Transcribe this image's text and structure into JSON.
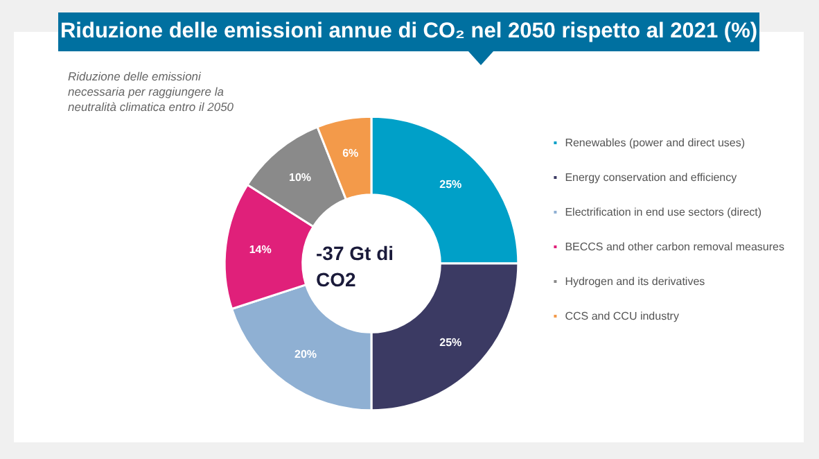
{
  "chart_data": {
    "type": "donut",
    "title": "Riduzione delle emissioni annue di CO₂ nel 2050 rispetto al 2021 (%)",
    "subtitle": "Riduzione delle emissioni necessaria per raggiungere la neutralità climatica entro il 2050",
    "annotations": [
      "-37 Gt di CO2"
    ],
    "categories": [
      "Renewables (power and direct uses)",
      "Energy conservation and efficiency",
      "Electrification in end use sectors (direct)",
      "BECCS and other carbon removal measures",
      "Hydrogen and its derivatives",
      "CCS and CCU industry"
    ],
    "values": [
      25,
      25,
      20,
      14,
      10,
      6
    ],
    "value_labels": [
      "25%",
      "25%",
      "20%",
      "14%",
      "10%",
      "6%"
    ],
    "colors": [
      "#00a0c8",
      "#3b3a63",
      "#8fb0d3",
      "#e0207a",
      "#8a8a8a",
      "#f39a4a"
    ],
    "legend": "right"
  }
}
